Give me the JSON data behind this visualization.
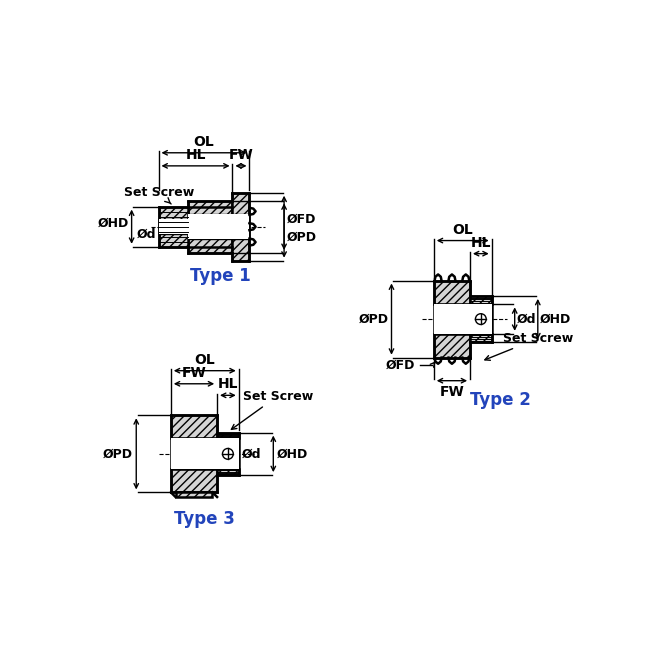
{
  "bg_color": "#ffffff",
  "line_color": "#000000",
  "hatch_fill": "#d4d4d4",
  "blue_color": "#2244bb",
  "type1_label": "Type 1",
  "type2_label": "Type 2",
  "type3_label": "Type 3",
  "figsize": [
    6.7,
    6.7
  ],
  "dpi": 100
}
